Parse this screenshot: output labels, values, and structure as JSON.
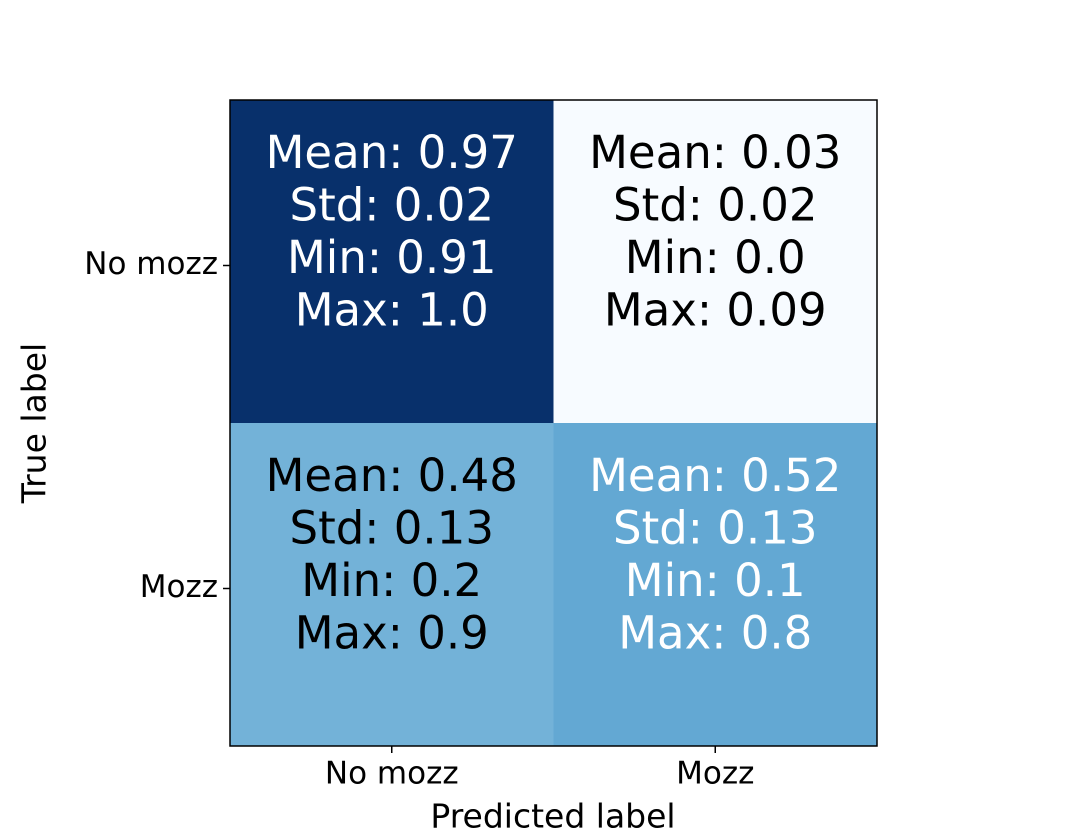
{
  "chart_data": {
    "type": "heatmap",
    "x_label": "Predicted label",
    "y_label": "True label",
    "x_categories": [
      "No mozz",
      "Mozz"
    ],
    "y_categories": [
      "No mozz",
      "Mozz"
    ],
    "values": [
      [
        0.97,
        0.03
      ],
      [
        0.48,
        0.52
      ]
    ],
    "cell_labels": [
      [
        [
          "Mean: 0.97",
          "Std: 0.02",
          "Min: 0.91",
          "Max: 1.0"
        ],
        [
          "Mean: 0.03",
          "Std: 0.02",
          "Min: 0.0",
          "Max: 0.09"
        ]
      ],
      [
        [
          "Mean: 0.48",
          "Std: 0.13",
          "Min: 0.2",
          "Max: 0.9"
        ],
        [
          "Mean: 0.52",
          "Std: 0.13",
          "Min: 0.1",
          "Max: 0.8"
        ]
      ]
    ],
    "colors": [
      [
        "#08306b",
        "#f7fbff"
      ],
      [
        "#73b2d8",
        "#63a8d3"
      ]
    ]
  }
}
